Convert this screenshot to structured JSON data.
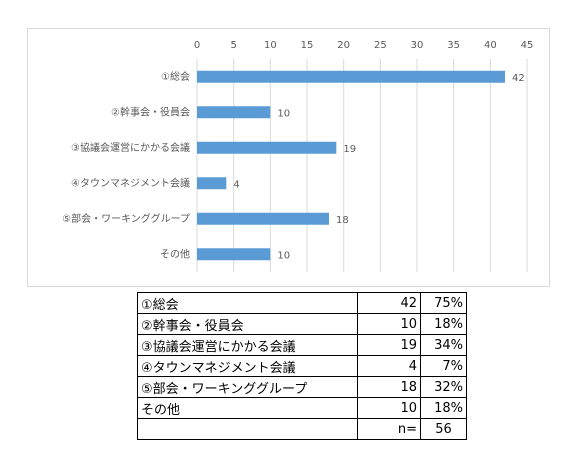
{
  "chart_data": {
    "type": "bar",
    "orientation": "horizontal",
    "categories": [
      "①総会",
      "②幹事会・役員会",
      "③協議会運営にかかる会議",
      "④タウンマネジメント会議",
      "⑤部会・ワーキンググループ",
      "その他"
    ],
    "values": [
      42,
      10,
      19,
      4,
      18,
      10
    ],
    "color": "#5b9bd5",
    "xlim": [
      0,
      45
    ],
    "xticks": [
      0,
      5,
      10,
      15,
      20,
      25,
      30,
      35,
      40,
      45
    ],
    "grid": true
  },
  "table": {
    "percents": [
      "75%",
      "18%",
      "34%",
      "7%",
      "32%",
      "18%"
    ],
    "n_label": "n=",
    "n": 56
  }
}
